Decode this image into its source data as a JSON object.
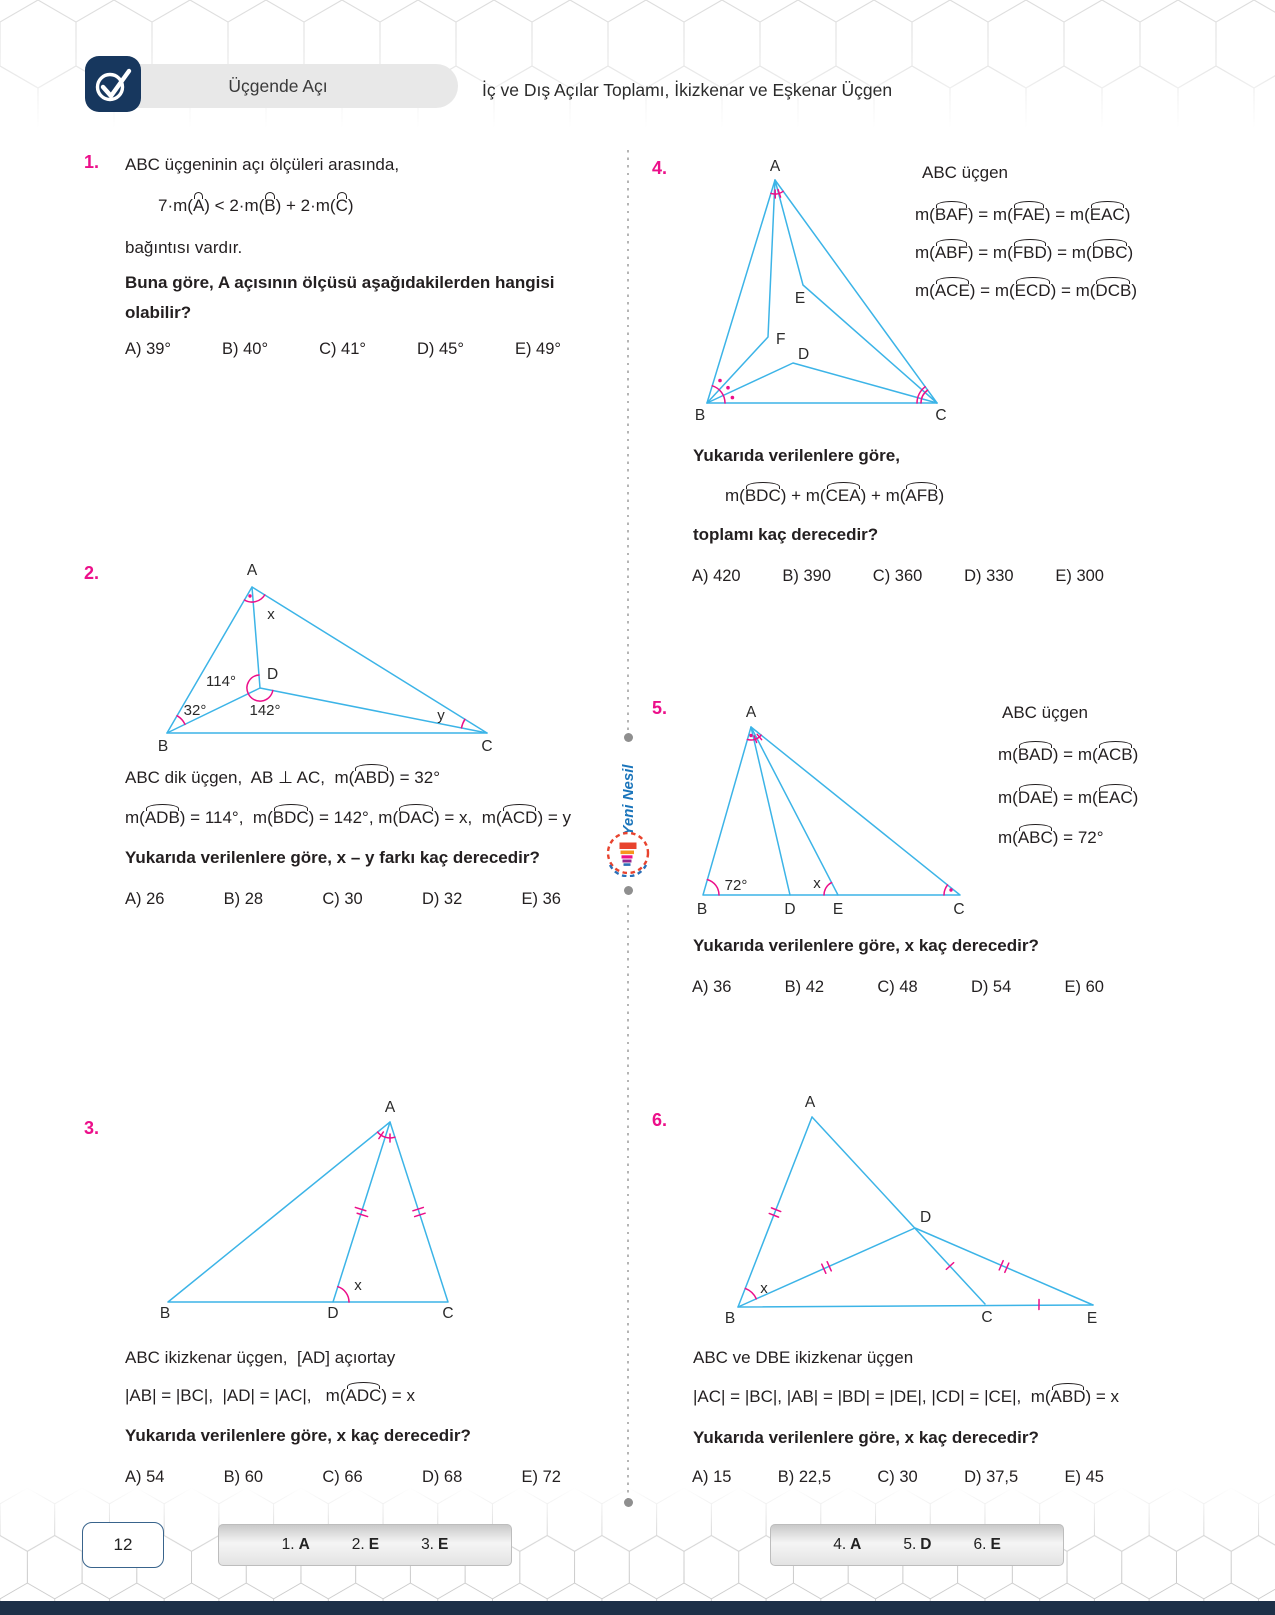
{
  "header": {
    "chapter": "Üçgende Açı",
    "title": "İç ve Dış Açılar Toplamı, İkizkenar ve Eşkenar Üçgen"
  },
  "brand": {
    "name": "Yeni Nesil"
  },
  "q1": {
    "number": "1.",
    "intro": "ABC üçgeninin açı ölçüleri arasında,",
    "formula": [
      {
        "t": "7·m("
      },
      {
        "t": "A",
        "hat": true
      },
      {
        "t": ") < 2·m("
      },
      {
        "t": "B",
        "hat": true
      },
      {
        "t": ") + 2·m("
      },
      {
        "t": "C",
        "hat": true
      },
      {
        "t": ")"
      }
    ],
    "after": "bağıntısı vardır.",
    "question": "Buna göre, A açısının ölçüsü aşağıdakilerden hangisi olabilir?",
    "options": [
      "A) 39°",
      "B) 40°",
      "C) 41°",
      "D) 45°",
      "E) 49°"
    ]
  },
  "q2": {
    "number": "2.",
    "diagram": {
      "a": "A",
      "b": "B",
      "c": "C",
      "d": "D",
      "x": "x",
      "y": "y",
      "angle_adb": "114°",
      "angle_bdc": "142°",
      "angle_abd": "32°"
    },
    "given1": [
      {
        "t": "ABC dik üçgen,  AB ⊥ AC,  m("
      },
      {
        "t": "ABD",
        "hat": true
      },
      {
        "t": ") = 32°"
      }
    ],
    "given2": [
      {
        "t": "m("
      },
      {
        "t": "ADB",
        "hat": true
      },
      {
        "t": ") = 114°,  m("
      },
      {
        "t": "BDC",
        "hat": true
      },
      {
        "t": ") = 142°, m("
      },
      {
        "t": "DAC",
        "hat": true
      },
      {
        "t": ") = x,  m("
      },
      {
        "t": "ACD",
        "hat": true
      },
      {
        "t": ") = y"
      }
    ],
    "question": "Yukarıda verilenlere göre, x – y farkı kaç derecedir?",
    "options": [
      "A) 26",
      "B) 28",
      "C) 30",
      "D) 32",
      "E) 36"
    ]
  },
  "q3": {
    "number": "3.",
    "diagram": {
      "a": "A",
      "b": "B",
      "c": "C",
      "d": "D",
      "x": "x"
    },
    "given1": "ABC ikizkenar üçgen,  [AD] açıortay",
    "given2": [
      {
        "t": "|AB| = |BC|,  |AD| = |AC|,   m("
      },
      {
        "t": "ADC",
        "hat": true
      },
      {
        "t": ") = x"
      }
    ],
    "question": "Yukarıda verilenlere göre, x kaç derecedir?",
    "options": [
      "A) 54",
      "B) 60",
      "C) 66",
      "D) 68",
      "E) 72"
    ]
  },
  "q4": {
    "number": "4.",
    "diagram": {
      "a": "A",
      "b": "B",
      "c": "C",
      "d": "D",
      "e": "E",
      "f": "F"
    },
    "side_title": "ABC üçgen",
    "side1": [
      {
        "t": "m("
      },
      {
        "t": "BAF",
        "hat": true
      },
      {
        "t": ") = m("
      },
      {
        "t": "FAE",
        "hat": true
      },
      {
        "t": ") = m("
      },
      {
        "t": "EAC",
        "hat": true
      },
      {
        "t": ")"
      }
    ],
    "side2": [
      {
        "t": "m("
      },
      {
        "t": "ABF",
        "hat": true
      },
      {
        "t": ") = m("
      },
      {
        "t": "FBD",
        "hat": true
      },
      {
        "t": ") = m("
      },
      {
        "t": "DBC",
        "hat": true
      },
      {
        "t": ")"
      }
    ],
    "side3": [
      {
        "t": "m("
      },
      {
        "t": "ACE",
        "hat": true
      },
      {
        "t": ") = m("
      },
      {
        "t": "ECD",
        "hat": true
      },
      {
        "t": ") = m("
      },
      {
        "t": "DCB",
        "hat": true
      },
      {
        "t": ")"
      }
    ],
    "question_pre": "Yukarıda verilenlere göre,",
    "formula": [
      {
        "t": "m("
      },
      {
        "t": "BDC",
        "hat": true
      },
      {
        "t": ") + m("
      },
      {
        "t": "CEA",
        "hat": true
      },
      {
        "t": ") + m("
      },
      {
        "t": "AFB",
        "hat": true
      },
      {
        "t": ")"
      }
    ],
    "question_post": "toplamı kaç derecedir?",
    "options": [
      "A) 420",
      "B) 390",
      "C) 360",
      "D) 330",
      "E) 300"
    ]
  },
  "q5": {
    "number": "5.",
    "diagram": {
      "a": "A",
      "b": "B",
      "c": "C",
      "d": "D",
      "e": "E",
      "x": "x",
      "angle_b": "72°"
    },
    "side_title": "ABC üçgen",
    "side1": [
      {
        "t": "m("
      },
      {
        "t": "BAD",
        "hat": true
      },
      {
        "t": ") = m("
      },
      {
        "t": "ACB",
        "hat": true
      },
      {
        "t": ")"
      }
    ],
    "side2": [
      {
        "t": "m("
      },
      {
        "t": "DAE",
        "hat": true
      },
      {
        "t": ") = m("
      },
      {
        "t": "EAC",
        "hat": true
      },
      {
        "t": ")"
      }
    ],
    "side3": [
      {
        "t": "m("
      },
      {
        "t": "ABC",
        "hat": true
      },
      {
        "t": ") = 72°"
      }
    ],
    "question": "Yukarıda verilenlere göre, x kaç derecedir?",
    "options": [
      "A) 36",
      "B) 42",
      "C) 48",
      "D) 54",
      "E) 60"
    ]
  },
  "q6": {
    "number": "6.",
    "diagram": {
      "a": "A",
      "b": "B",
      "c": "C",
      "d": "D",
      "e": "E",
      "x": "x"
    },
    "given1": "ABC ve DBE ikizkenar üçgen",
    "given2": [
      {
        "t": "|AC| = |BC|, |AB| = |BD| = |DE|, |CD| = |CE|,  m("
      },
      {
        "t": "ABD",
        "hat": true
      },
      {
        "t": ") = x"
      }
    ],
    "question": "Yukarıda verilenlere göre, x kaç derecedir?",
    "options": [
      "A) 15",
      "B) 22,5",
      "C) 30",
      "D) 37,5",
      "E) 45"
    ]
  },
  "footer": {
    "page": "12",
    "answers_left": [
      {
        "n": "1.",
        "a": "A"
      },
      {
        "n": "2.",
        "a": "E"
      },
      {
        "n": "3.",
        "a": "E"
      }
    ],
    "answers_right": [
      {
        "n": "4.",
        "a": "A"
      },
      {
        "n": "5.",
        "a": "D"
      },
      {
        "n": "6.",
        "a": "E"
      }
    ]
  }
}
